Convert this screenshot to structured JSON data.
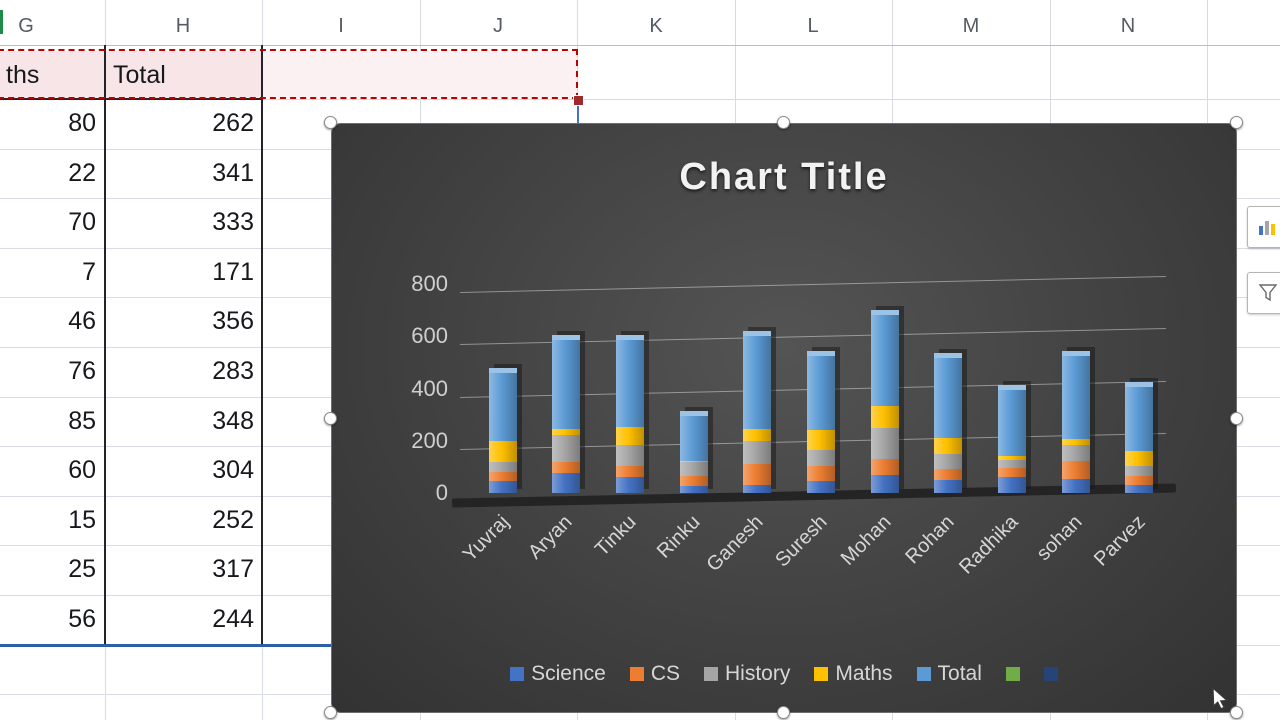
{
  "sheet": {
    "column_headers": [
      "G",
      "H",
      "I",
      "J",
      "K",
      "L",
      "M",
      "N"
    ],
    "table": {
      "col_g_header": "ths",
      "col_h_header": "Total",
      "rows": [
        [
          "80",
          "262"
        ],
        [
          "22",
          "341"
        ],
        [
          "70",
          "333"
        ],
        [
          "7",
          "171"
        ],
        [
          "46",
          "356"
        ],
        [
          "76",
          "283"
        ],
        [
          "85",
          "348"
        ],
        [
          "60",
          "304"
        ],
        [
          "15",
          "252"
        ],
        [
          "25",
          "317"
        ],
        [
          "56",
          "244"
        ]
      ]
    },
    "selection": {
      "red_dash_color": "#C00000",
      "blue_range_color": "#4472C4",
      "selected_fill": "#F8E5E7"
    }
  },
  "chart_data": {
    "type": "bar",
    "stacked": true,
    "title": "Chart Title",
    "categories": [
      "Yuvraj",
      "Aryan",
      "Tinku",
      "Rinku",
      "Ganesh",
      "Suresh",
      "Mohan",
      "Rohan",
      "Radhika",
      "sohan",
      "Parvez"
    ],
    "series": [
      {
        "name": "Science",
        "color": "#4472C4",
        "values": [
          45,
          75,
          60,
          25,
          30,
          45,
          70,
          50,
          60,
          55,
          30
        ]
      },
      {
        "name": "CS",
        "color": "#ED7D31",
        "values": [
          35,
          45,
          45,
          40,
          80,
          60,
          60,
          40,
          35,
          68,
          35
        ]
      },
      {
        "name": "History",
        "color": "#A5A5A5",
        "values": [
          38,
          102,
          77,
          52,
          88,
          61,
          117,
          61,
          33,
          60,
          40
        ]
      },
      {
        "name": "Maths",
        "color": "#FFC000",
        "values": [
          80,
          22,
          70,
          7,
          46,
          76,
          85,
          60,
          15,
          25,
          56
        ]
      },
      {
        "name": "Total",
        "color": "#5B9BD5",
        "values": [
          262,
          341,
          333,
          171,
          356,
          283,
          348,
          304,
          252,
          317,
          244
        ]
      },
      {
        "name": "",
        "color": "#70AD47",
        "values": []
      },
      {
        "name": "",
        "color": "#264478",
        "values": []
      }
    ],
    "ylim": [
      0,
      800
    ],
    "yticks": [
      0,
      200,
      400,
      600,
      800
    ],
    "legend_position": "bottom",
    "grid": true,
    "background": "#3F3F3F",
    "text_color": "#D9D9D9"
  },
  "icons": {
    "right_panel": [
      "chart-styles-icon",
      "chart-filters-icon"
    ],
    "cursor": "mouse-pointer-icon"
  }
}
